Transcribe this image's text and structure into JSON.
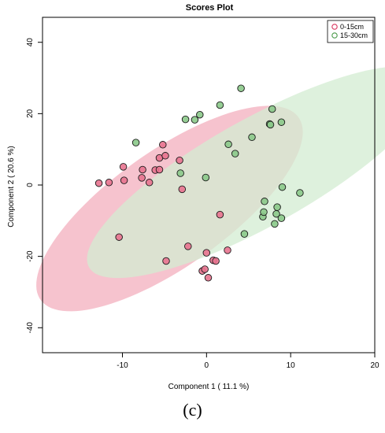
{
  "chart_data": {
    "type": "scatter",
    "title": "Scores Plot",
    "xlabel": "Component 1 ( 11.1 %)",
    "ylabel": "Component 2 ( 20.6 %)",
    "xlim": [
      -19.5,
      20
    ],
    "ylim": [
      -47,
      47
    ],
    "xticks": [
      -10,
      0,
      10,
      20
    ],
    "yticks": [
      -40,
      -20,
      0,
      20,
      40
    ],
    "grid": false,
    "legend_position": "top-right",
    "series": [
      {
        "name": "0-15cm",
        "color": "#d9355e",
        "fill": "#e8738f",
        "ellipse": {
          "center": [
            -4.4,
            -6.6
          ],
          "axes": [
            9.7,
            31.4
          ],
          "angle_deg": 24.8,
          "fill": "#f4b8c6"
        },
        "points": [
          [
            -12.8,
            0.5
          ],
          [
            -11.6,
            0.7
          ],
          [
            -9.9,
            5.1
          ],
          [
            -9.8,
            1.3
          ],
          [
            -10.4,
            -14.6
          ],
          [
            -7.6,
            4.3
          ],
          [
            -7.7,
            2.0
          ],
          [
            -6.8,
            0.7
          ],
          [
            -6.1,
            4.2
          ],
          [
            -5.6,
            4.3
          ],
          [
            -5.6,
            7.6
          ],
          [
            -5.2,
            11.3
          ],
          [
            -4.9,
            8.2
          ],
          [
            -4.8,
            -21.3
          ],
          [
            -3.2,
            6.9
          ],
          [
            -2.9,
            -1.2
          ],
          [
            -2.2,
            -17.2
          ],
          [
            -0.5,
            -24.1
          ],
          [
            -0.2,
            -23.6
          ],
          [
            0.0,
            -19.0
          ],
          [
            0.2,
            -26.0
          ],
          [
            0.8,
            -21.1
          ],
          [
            1.1,
            -21.3
          ],
          [
            1.6,
            -8.3
          ],
          [
            2.5,
            -18.3
          ]
        ]
      },
      {
        "name": "15-30cm",
        "color": "#4a9a49",
        "fill": "#8bc98a",
        "ellipse": {
          "center": [
            6.2,
            3.6
          ],
          "axes": [
            10.0,
            34.6
          ],
          "angle_deg": 32.5,
          "fill": "#d3ecd2"
        },
        "points": [
          [
            -8.4,
            11.9
          ],
          [
            -3.1,
            3.3
          ],
          [
            -2.5,
            18.4
          ],
          [
            -1.4,
            18.3
          ],
          [
            -0.8,
            19.7
          ],
          [
            -0.1,
            2.1
          ],
          [
            1.6,
            22.4
          ],
          [
            2.6,
            11.4
          ],
          [
            3.4,
            8.8
          ],
          [
            4.1,
            27.1
          ],
          [
            4.5,
            -13.7
          ],
          [
            5.4,
            13.4
          ],
          [
            6.7,
            -8.9
          ],
          [
            6.8,
            -7.6
          ],
          [
            6.9,
            -4.6
          ],
          [
            7.5,
            17.1
          ],
          [
            7.6,
            16.9
          ],
          [
            7.8,
            21.3
          ],
          [
            8.1,
            -10.9
          ],
          [
            8.3,
            -8.1
          ],
          [
            8.4,
            -6.2
          ],
          [
            8.9,
            17.6
          ],
          [
            8.9,
            -9.3
          ],
          [
            9.0,
            -0.6
          ],
          [
            11.1,
            -2.2
          ]
        ]
      }
    ]
  },
  "caption": "(c)"
}
